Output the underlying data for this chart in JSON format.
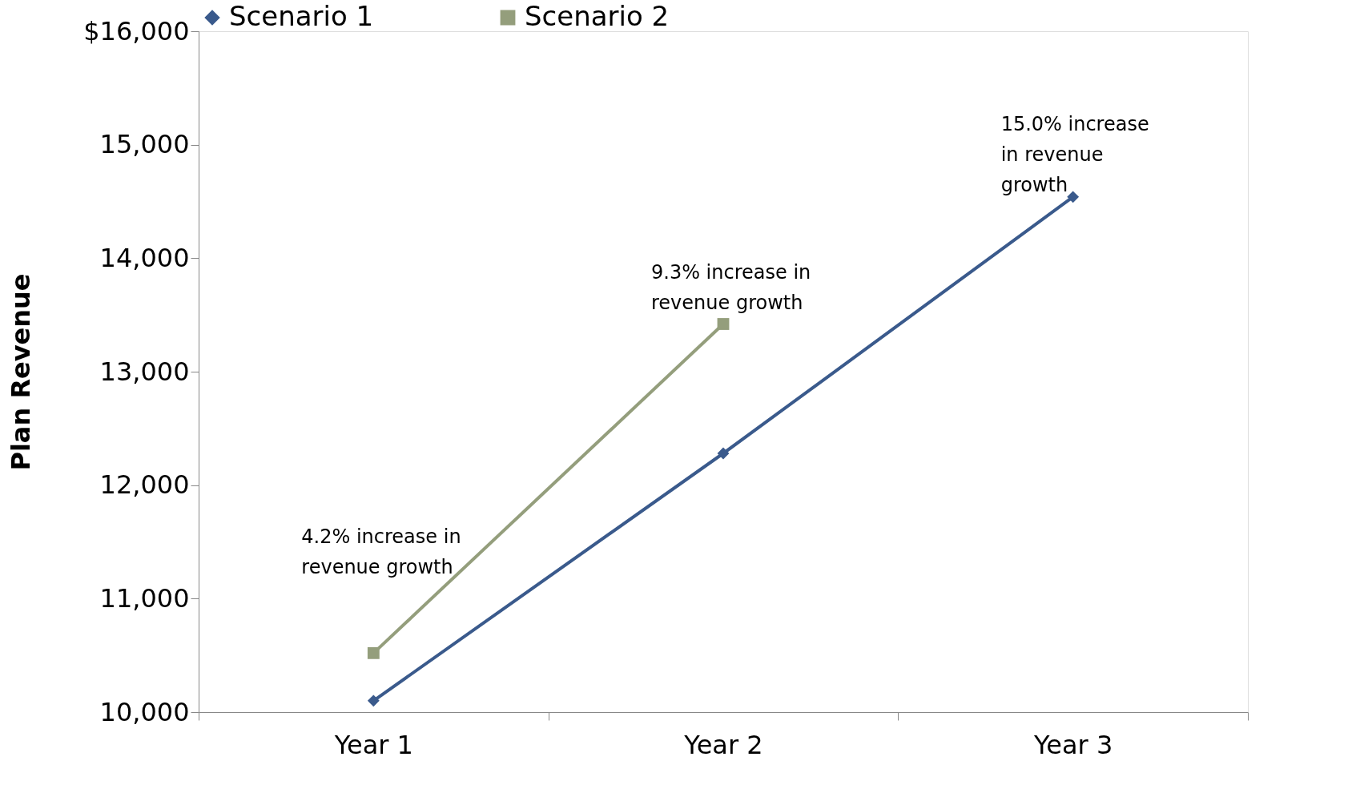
{
  "chart_data": {
    "type": "line",
    "ylabel": "Plan Revenue",
    "categories": [
      "Year 1",
      "Year 2",
      "Year 3"
    ],
    "series": [
      {
        "name": "Scenario 1",
        "color": "#3a5a8c",
        "values": [
          10100,
          12280,
          14540
        ],
        "marker": "diamond"
      },
      {
        "name": "Scenario 2",
        "color": "#949e7c",
        "values": [
          10520,
          13420,
          null
        ],
        "marker": "square"
      }
    ],
    "ylim": [
      10000,
      16000
    ],
    "yticks": [
      {
        "value": 10000,
        "label": "10,000"
      },
      {
        "value": 11000,
        "label": "11,000"
      },
      {
        "value": 12000,
        "label": "12,000"
      },
      {
        "value": 13000,
        "label": "13,000"
      },
      {
        "value": 14000,
        "label": "14,000"
      },
      {
        "value": 15000,
        "label": "15,000"
      },
      {
        "value": 16000,
        "label": "$16,000"
      }
    ],
    "grid": false,
    "legend": "top",
    "line_style": "solid",
    "annotations": [
      "4.2% increase in\nrevenue  growth",
      "9.3% increase in\nrevenue growth",
      "15.0% increase\nin  revenue\ngrowth"
    ]
  }
}
